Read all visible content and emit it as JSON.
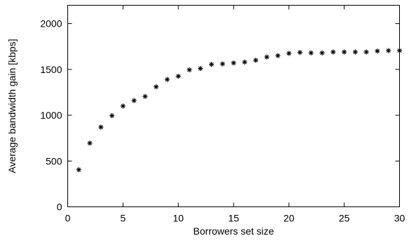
{
  "chart_data": {
    "type": "scatter",
    "title": "",
    "xlabel": "Borrowers set size",
    "ylabel": "Average bandwidth gain [kbps]",
    "xlim": [
      0,
      30
    ],
    "ylim": [
      0,
      2200
    ],
    "xticks": [
      0,
      5,
      10,
      15,
      20,
      25,
      30
    ],
    "yticks": [
      0,
      500,
      1000,
      1500,
      2000
    ],
    "grid": false,
    "marker": "asterisk",
    "series": [
      {
        "x": [
          1,
          2,
          3,
          4,
          5,
          6,
          7,
          8,
          9,
          10,
          11,
          12,
          13,
          14,
          15,
          16,
          17,
          18,
          19,
          20,
          21,
          22,
          23,
          24,
          25,
          26,
          27,
          28,
          29,
          30
        ],
        "y": [
          405,
          695,
          870,
          995,
          1100,
          1160,
          1205,
          1310,
          1390,
          1425,
          1495,
          1510,
          1555,
          1560,
          1570,
          1580,
          1600,
          1635,
          1650,
          1675,
          1685,
          1680,
          1680,
          1690,
          1690,
          1690,
          1690,
          1700,
          1705,
          1705
        ]
      }
    ]
  }
}
